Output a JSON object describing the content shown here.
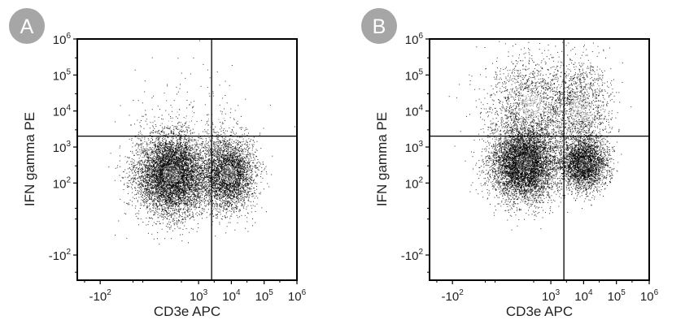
{
  "panels": [
    {
      "badge": "A",
      "badge_color": "#a6a6a6",
      "chart_data": {
        "type": "scatter",
        "title": "",
        "xlabel": "CD3e APC",
        "ylabel": "IFN gamma PE",
        "x_scale": "biexponential",
        "y_scale": "biexponential",
        "x_ticks": [
          {
            "value": -100,
            "base": "-10",
            "exp": "2"
          },
          {
            "value": 1000,
            "base": "10",
            "exp": "3"
          },
          {
            "value": 10000,
            "base": "10",
            "exp": "4"
          },
          {
            "value": 100000,
            "base": "10",
            "exp": "5"
          },
          {
            "value": 1000000,
            "base": "10",
            "exp": "6"
          }
        ],
        "y_ticks": [
          {
            "value": -100,
            "base": "-10",
            "exp": "2"
          },
          {
            "value": 100,
            "base": "10",
            "exp": "2"
          },
          {
            "value": 1000,
            "base": "10",
            "exp": "3"
          },
          {
            "value": 10000,
            "base": "10",
            "exp": "4"
          },
          {
            "value": 100000,
            "base": "10",
            "exp": "5"
          },
          {
            "value": 1000000,
            "base": "10",
            "exp": "6"
          }
        ],
        "quadrant_gate": {
          "x": 2500,
          "y": 2000
        },
        "populations": [
          {
            "x": 150,
            "y": 180,
            "count": 6500,
            "spread_x": 0.55,
            "spread_y": 0.55
          },
          {
            "x": 8000,
            "y": 180,
            "count": 3500,
            "spread_x": 0.4,
            "spread_y": 0.5
          },
          {
            "x": 300,
            "y": 6000,
            "count": 120,
            "spread_x": 0.9,
            "spread_y": 0.8
          },
          {
            "x": 3000,
            "y": 5000,
            "count": 60,
            "spread_x": 0.8,
            "spread_y": 0.8
          }
        ],
        "grid": false,
        "legend": "none"
      }
    },
    {
      "badge": "B",
      "badge_color": "#a6a6a6",
      "chart_data": {
        "type": "scatter",
        "title": "",
        "xlabel": "CD3e APC",
        "ylabel": "IFN gamma PE",
        "x_scale": "biexponential",
        "y_scale": "biexponential",
        "x_ticks": [
          {
            "value": -100,
            "base": "-10",
            "exp": "2"
          },
          {
            "value": 1000,
            "base": "10",
            "exp": "3"
          },
          {
            "value": 10000,
            "base": "10",
            "exp": "4"
          },
          {
            "value": 100000,
            "base": "10",
            "exp": "5"
          },
          {
            "value": 1000000,
            "base": "10",
            "exp": "6"
          }
        ],
        "y_ticks": [
          {
            "value": -100,
            "base": "-10",
            "exp": "2"
          },
          {
            "value": 100,
            "base": "10",
            "exp": "2"
          },
          {
            "value": 1000,
            "base": "10",
            "exp": "3"
          },
          {
            "value": 10000,
            "base": "10",
            "exp": "4"
          },
          {
            "value": 100000,
            "base": "10",
            "exp": "5"
          },
          {
            "value": 1000000,
            "base": "10",
            "exp": "6"
          }
        ],
        "quadrant_gate": {
          "x": 2500,
          "y": 2000
        },
        "populations": [
          {
            "x": 150,
            "y": 350,
            "count": 6000,
            "spread_x": 0.5,
            "spread_y": 0.5
          },
          {
            "x": 10000,
            "y": 350,
            "count": 3000,
            "spread_x": 0.35,
            "spread_y": 0.35
          },
          {
            "x": 250,
            "y": 15000,
            "count": 1600,
            "spread_x": 0.7,
            "spread_y": 0.7
          },
          {
            "x": 8000,
            "y": 12000,
            "count": 1300,
            "spread_x": 0.45,
            "spread_y": 0.7
          }
        ],
        "grid": false,
        "legend": "none"
      }
    }
  ]
}
